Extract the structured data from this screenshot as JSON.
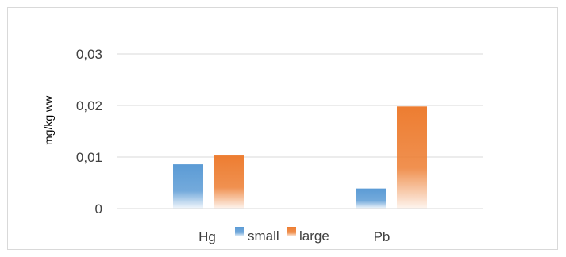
{
  "chart_data": {
    "type": "bar",
    "title": "",
    "xlabel": "",
    "ylabel": "mg/kg ww",
    "categories": [
      "Hg",
      "Pb"
    ],
    "series": [
      {
        "name": "small",
        "values": [
          0.0086,
          0.0039
        ],
        "color": "#5b9bd5"
      },
      {
        "name": "large",
        "values": [
          0.0103,
          0.0198
        ],
        "color": "#ed7d31"
      }
    ],
    "ylim": [
      0,
      0.03
    ],
    "yticks": [
      0,
      0.01,
      0.02,
      0.03
    ],
    "ytick_labels": [
      "0",
      "0,01",
      "0,02",
      "0,03"
    ],
    "grid": true,
    "legend": "bottom"
  }
}
